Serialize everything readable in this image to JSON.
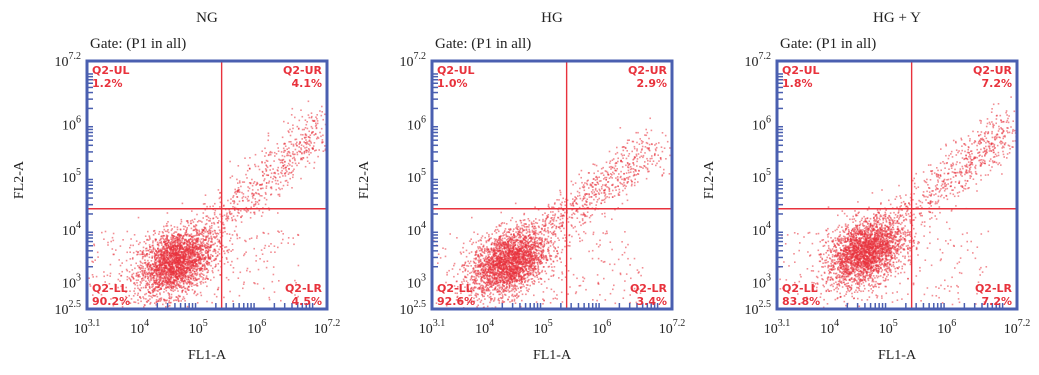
{
  "chart_data": [
    {
      "type": "scatter",
      "title": "NG",
      "gate": "Gate: (P1 in all)",
      "xlabel": "FL1-A",
      "ylabel": "FL2-A",
      "xscale": "log",
      "yscale": "log",
      "xlim_exp": [
        3.1,
        7.2
      ],
      "ylim_exp": [
        2.5,
        7.2
      ],
      "x_ticks": [
        {
          "base": "10",
          "exp": "3.1"
        },
        {
          "base": "10",
          "exp": "4"
        },
        {
          "base": "10",
          "exp": "5"
        },
        {
          "base": "10",
          "exp": "6"
        },
        {
          "base": "10",
          "exp": "7.2"
        }
      ],
      "y_ticks": [
        {
          "base": "10",
          "exp": "2.5"
        },
        {
          "base": "10",
          "exp": "3"
        },
        {
          "base": "10",
          "exp": "4"
        },
        {
          "base": "10",
          "exp": "5"
        },
        {
          "base": "10",
          "exp": "6"
        },
        {
          "base": "10",
          "exp": "7.2"
        }
      ],
      "gate_x_exp": 5.4,
      "gate_y_exp": 4.4,
      "population": {
        "center_exp": [
          4.6,
          3.4
        ],
        "tail_end_exp": [
          7.1,
          6.0
        ]
      },
      "quadrants": [
        {
          "name": "Q2-UL",
          "value": "1.2%"
        },
        {
          "name": "Q2-UR",
          "value": "4.1%"
        },
        {
          "name": "Q2-LL",
          "value": "90.2%"
        },
        {
          "name": "Q2-LR",
          "value": "4.5%"
        }
      ],
      "color": "#e8323c"
    },
    {
      "type": "scatter",
      "title": "HG",
      "gate": "Gate: (P1 in all)",
      "xlabel": "FL1-A",
      "ylabel": "FL2-A",
      "xscale": "log",
      "yscale": "log",
      "xlim_exp": [
        3.1,
        7.2
      ],
      "ylim_exp": [
        2.5,
        7.2
      ],
      "x_ticks": [
        {
          "base": "10",
          "exp": "3.1"
        },
        {
          "base": "10",
          "exp": "4"
        },
        {
          "base": "10",
          "exp": "5"
        },
        {
          "base": "10",
          "exp": "6"
        },
        {
          "base": "10",
          "exp": "7.2"
        }
      ],
      "y_ticks": [
        {
          "base": "10",
          "exp": "2.5"
        },
        {
          "base": "10",
          "exp": "3"
        },
        {
          "base": "10",
          "exp": "4"
        },
        {
          "base": "10",
          "exp": "5"
        },
        {
          "base": "10",
          "exp": "6"
        },
        {
          "base": "10",
          "exp": "7.2"
        }
      ],
      "gate_x_exp": 5.4,
      "gate_y_exp": 4.4,
      "population": {
        "center_exp": [
          4.4,
          3.4
        ],
        "tail_end_exp": [
          6.9,
          5.6
        ]
      },
      "quadrants": [
        {
          "name": "Q2-UL",
          "value": "1.0%"
        },
        {
          "name": "Q2-UR",
          "value": "2.9%"
        },
        {
          "name": "Q2-LL",
          "value": "92.6%"
        },
        {
          "name": "Q2-LR",
          "value": "3.4%"
        }
      ],
      "color": "#e8323c"
    },
    {
      "type": "scatter",
      "title": "HG + Y",
      "gate": "Gate: (P1 in all)",
      "xlabel": "FL1-A",
      "ylabel": "FL2-A",
      "xscale": "log",
      "yscale": "log",
      "xlim_exp": [
        3.1,
        7.2
      ],
      "ylim_exp": [
        2.5,
        7.2
      ],
      "x_ticks": [
        {
          "base": "10",
          "exp": "3.1"
        },
        {
          "base": "10",
          "exp": "4"
        },
        {
          "base": "10",
          "exp": "5"
        },
        {
          "base": "10",
          "exp": "6"
        },
        {
          "base": "10",
          "exp": "7.2"
        }
      ],
      "y_ticks": [
        {
          "base": "10",
          "exp": "2.5"
        },
        {
          "base": "10",
          "exp": "3"
        },
        {
          "base": "10",
          "exp": "4"
        },
        {
          "base": "10",
          "exp": "5"
        },
        {
          "base": "10",
          "exp": "6"
        },
        {
          "base": "10",
          "exp": "7.2"
        }
      ],
      "gate_x_exp": 5.4,
      "gate_y_exp": 4.4,
      "population": {
        "center_exp": [
          4.6,
          3.6
        ],
        "tail_end_exp": [
          7.1,
          6.0
        ]
      },
      "quadrants": [
        {
          "name": "Q2-UL",
          "value": "1.8%"
        },
        {
          "name": "Q2-UR",
          "value": "7.2%"
        },
        {
          "name": "Q2-LL",
          "value": "83.8%"
        },
        {
          "name": "Q2-LR",
          "value": "7.2%"
        }
      ],
      "color": "#e8323c"
    }
  ]
}
